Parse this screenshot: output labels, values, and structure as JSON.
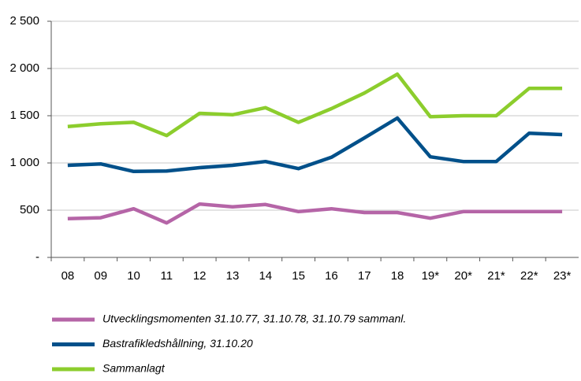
{
  "chart_data": {
    "type": "line",
    "categories": [
      "08",
      "09",
      "10",
      "11",
      "12",
      "13",
      "14",
      "15",
      "16",
      "17",
      "18",
      "19*",
      "20*",
      "21*",
      "22*",
      "23*"
    ],
    "series": [
      {
        "name": "Utvecklingsmomenten 31.10.77, 31.10.78, 31.10.79 sammanl.",
        "color": "#b565a7",
        "values": [
          410,
          420,
          515,
          365,
          565,
          535,
          560,
          485,
          515,
          475,
          475,
          415,
          485,
          485,
          485,
          485
        ]
      },
      {
        "name": "Bastrafikledshållning, 31.10.20",
        "color": "#00508a",
        "values": [
          975,
          990,
          910,
          915,
          950,
          975,
          1015,
          940,
          1060,
          1265,
          1475,
          1065,
          1015,
          1015,
          1315,
          1300
        ]
      },
      {
        "name": "Sammanlagt",
        "color": "#8ccd2d",
        "values": [
          1385,
          1415,
          1430,
          1290,
          1525,
          1510,
          1585,
          1430,
          1575,
          1740,
          1940,
          1490,
          1500,
          1500,
          1790,
          1790
        ]
      }
    ],
    "ylim": [
      0,
      2500
    ],
    "yticks": [
      {
        "value": 0,
        "label": "-"
      },
      500,
      {
        "value": 1000,
        "label": "1 000"
      },
      {
        "value": 1500,
        "label": "1 500"
      },
      {
        "value": 2000,
        "label": "2 000"
      },
      {
        "value": 2500,
        "label": "2 500"
      }
    ],
    "grid": true,
    "legend": "bottom"
  }
}
